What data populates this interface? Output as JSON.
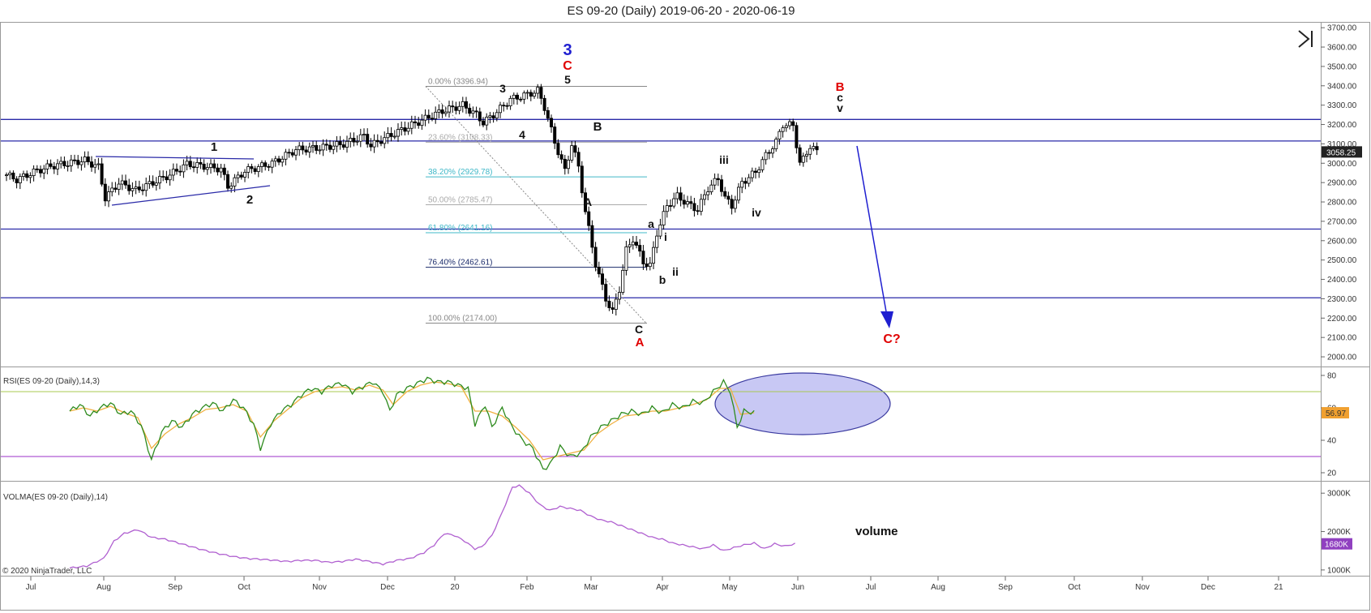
{
  "title": "ES 09-20 (Daily)  2019-06-20 - 2020-06-19",
  "copyright": "© 2020 NinjaTrader, LLC",
  "colors": {
    "up_candle": "#ffffff",
    "down_candle": "#000000",
    "hline": "#2a2aa8",
    "rsi_line": "#2e8b1e",
    "rsi_signal": "#f0b040",
    "rsi_overbought": "#a8c850",
    "rsi_oversold": "#9b30c8",
    "volma_line": "#b060d0",
    "ellipse_fill": "#c8c8f4",
    "ellipse_stroke": "#3a3aa0",
    "arrow": "#1f1fd0",
    "red_label": "#e00000",
    "blue_label": "#1f1fd0",
    "fib_gray": "#888888",
    "fib_cyan": "#40b8c8",
    "fib_navy": "#1a2a6a"
  },
  "icons": {
    "skip_to_end": "skip-to-end-icon"
  },
  "x_axis": {
    "labels": [
      "Jul",
      "Aug",
      "Sep",
      "Oct",
      "Nov",
      "Dec",
      "20",
      "Feb",
      "Mar",
      "Apr",
      "May",
      "Jun",
      "Jul",
      "Aug",
      "Sep",
      "Oct",
      "Nov",
      "Dec",
      "21"
    ]
  },
  "chart_data": [
    {
      "type": "candlestick",
      "title": "ES 09-20 (Daily)  2019-06-20 - 2020-06-19",
      "ylim": [
        1950,
        3730
      ],
      "y_ticks": [
        "2000.00",
        "2100.00",
        "2200.00",
        "2300.00",
        "2400.00",
        "2500.00",
        "2600.00",
        "2700.00",
        "2800.00",
        "2900.00",
        "3000.00",
        "3100.00",
        "3200.00",
        "3300.00",
        "3400.00",
        "3500.00",
        "3600.00",
        "3700.00"
      ],
      "last_price": "3058.25",
      "anchors": [
        [
          0,
          2940
        ],
        [
          3,
          2915
        ],
        [
          8,
          2955
        ],
        [
          13,
          2985
        ],
        [
          18,
          3000
        ],
        [
          23,
          3015
        ],
        [
          27,
          2980
        ],
        [
          29,
          2820
        ],
        [
          33,
          2900
        ],
        [
          38,
          2860
        ],
        [
          43,
          2900
        ],
        [
          48,
          2940
        ],
        [
          53,
          2995
        ],
        [
          58,
          2985
        ],
        [
          63,
          2970
        ],
        [
          65,
          2880
        ],
        [
          70,
          2960
        ],
        [
          78,
          3000
        ],
        [
          85,
          3070
        ],
        [
          92,
          3080
        ],
        [
          99,
          3100
        ],
        [
          105,
          3140
        ],
        [
          107,
          3090
        ],
        [
          110,
          3120
        ],
        [
          117,
          3180
        ],
        [
          123,
          3230
        ],
        [
          128,
          3270
        ],
        [
          134,
          3300
        ],
        [
          138,
          3250
        ],
        [
          140,
          3210
        ],
        [
          143,
          3250
        ],
        [
          148,
          3330
        ],
        [
          153,
          3355
        ],
        [
          156,
          3375
        ],
        [
          158,
          3290
        ],
        [
          161,
          3110
        ],
        [
          164,
          2960
        ],
        [
          166,
          3100
        ],
        [
          168,
          2980
        ],
        [
          170,
          2750
        ],
        [
          173,
          2480
        ],
        [
          176,
          2300
        ],
        [
          178,
          2230
        ],
        [
          180,
          2350
        ],
        [
          182,
          2550
        ],
        [
          184,
          2610
        ],
        [
          187,
          2490
        ],
        [
          189,
          2470
        ],
        [
          191,
          2640
        ],
        [
          194,
          2780
        ],
        [
          197,
          2830
        ],
        [
          200,
          2790
        ],
        [
          203,
          2760
        ],
        [
          206,
          2870
        ],
        [
          209,
          2920
        ],
        [
          211,
          2820
        ],
        [
          213,
          2780
        ],
        [
          216,
          2900
        ],
        [
          220,
          2955
        ],
        [
          223,
          3040
        ],
        [
          226,
          3110
        ],
        [
          228,
          3200
        ],
        [
          231,
          3195
        ],
        [
          233,
          3000
        ],
        [
          234,
          3020
        ],
        [
          236,
          3090
        ],
        [
          238,
          3058
        ]
      ],
      "horizontal_lines": [
        3226,
        3115,
        2660,
        2305
      ],
      "fibonacci": [
        {
          "label": "0.00% (3396.94)",
          "value": 3396.94,
          "color": "#888888"
        },
        {
          "label": "23.60% (3108.33)",
          "value": 3108.33,
          "color": "#aaaaaa"
        },
        {
          "label": "38.20% (2929.78)",
          "value": 2929.78,
          "color": "#40b8c8"
        },
        {
          "label": "50.00% (2785.47)",
          "value": 2785.47,
          "color": "#aaaaaa"
        },
        {
          "label": "61.80% (2641.16)",
          "value": 2641.16,
          "color": "#40b8c8"
        },
        {
          "label": "76.40% (2462.61)",
          "value": 2462.61,
          "color": "#1a2a6a"
        },
        {
          "label": "100.00% (2174.00)",
          "value": 2174.0,
          "color": "#888888"
        }
      ],
      "wave_labels": [
        {
          "text": "1",
          "color": "black"
        },
        {
          "text": "2",
          "color": "black"
        },
        {
          "text": "3",
          "color": "black"
        },
        {
          "text": "4",
          "color": "black"
        },
        {
          "text": "5",
          "color": "black"
        },
        {
          "text": "C",
          "color": "red"
        },
        {
          "text": "3",
          "color": "blue"
        },
        {
          "text": "B",
          "color": "black"
        },
        {
          "text": "A",
          "color": "black"
        },
        {
          "text": "C",
          "color": "black"
        },
        {
          "text": "A",
          "color": "red"
        },
        {
          "text": "a",
          "color": "black"
        },
        {
          "text": "b",
          "color": "black"
        },
        {
          "text": "i",
          "color": "black"
        },
        {
          "text": "ii",
          "color": "black"
        },
        {
          "text": "iii",
          "color": "black"
        },
        {
          "text": "iv",
          "color": "black"
        },
        {
          "text": "v",
          "color": "black"
        },
        {
          "text": "c",
          "color": "black"
        },
        {
          "text": "B",
          "color": "red"
        },
        {
          "text": "C?",
          "color": "red"
        }
      ]
    },
    {
      "type": "line",
      "title": "RSI(ES 09-20 (Daily),14,3)",
      "ylim": [
        15,
        85
      ],
      "y_ticks": [
        "20",
        "40",
        "60",
        "80"
      ],
      "overbought": 70,
      "oversold": 30,
      "last_value": "56.97",
      "anchors": [
        [
          0,
          58
        ],
        [
          3,
          62
        ],
        [
          6,
          55
        ],
        [
          9,
          60
        ],
        [
          12,
          63
        ],
        [
          15,
          56
        ],
        [
          18,
          58
        ],
        [
          21,
          49
        ],
        [
          24,
          28
        ],
        [
          27,
          45
        ],
        [
          30,
          52
        ],
        [
          33,
          48
        ],
        [
          36,
          56
        ],
        [
          39,
          60
        ],
        [
          42,
          63
        ],
        [
          45,
          58
        ],
        [
          48,
          65
        ],
        [
          51,
          60
        ],
        [
          54,
          50
        ],
        [
          56,
          35
        ],
        [
          59,
          50
        ],
        [
          62,
          58
        ],
        [
          65,
          62
        ],
        [
          68,
          68
        ],
        [
          71,
          72
        ],
        [
          74,
          70
        ],
        [
          77,
          74
        ],
        [
          80,
          75
        ],
        [
          83,
          70
        ],
        [
          86,
          73
        ],
        [
          89,
          76
        ],
        [
          92,
          70
        ],
        [
          94,
          58
        ],
        [
          96,
          68
        ],
        [
          99,
          72
        ],
        [
          102,
          75
        ],
        [
          105,
          78
        ],
        [
          108,
          76
        ],
        [
          111,
          76
        ],
        [
          114,
          74
        ],
        [
          117,
          72
        ],
        [
          119,
          50
        ],
        [
          122,
          62
        ],
        [
          124,
          48
        ],
        [
          127,
          60
        ],
        [
          130,
          48
        ],
        [
          133,
          40
        ],
        [
          136,
          35
        ],
        [
          139,
          22
        ],
        [
          141,
          25
        ],
        [
          144,
          36
        ],
        [
          147,
          30
        ],
        [
          150,
          32
        ],
        [
          153,
          42
        ],
        [
          156,
          48
        ],
        [
          159,
          52
        ],
        [
          162,
          56
        ],
        [
          165,
          58
        ],
        [
          168,
          56
        ],
        [
          171,
          60
        ],
        [
          174,
          57
        ],
        [
          177,
          62
        ],
        [
          180,
          60
        ],
        [
          183,
          64
        ],
        [
          186,
          63
        ],
        [
          189,
          70
        ],
        [
          192,
          76
        ],
        [
          194,
          70
        ],
        [
          196,
          48
        ],
        [
          198,
          58
        ],
        [
          201,
          57
        ]
      ],
      "signal_anchors": [
        [
          0,
          58
        ],
        [
          4,
          60
        ],
        [
          8,
          58
        ],
        [
          12,
          61
        ],
        [
          16,
          57
        ],
        [
          20,
          54
        ],
        [
          24,
          35
        ],
        [
          28,
          44
        ],
        [
          32,
          50
        ],
        [
          36,
          54
        ],
        [
          40,
          59
        ],
        [
          44,
          60
        ],
        [
          48,
          62
        ],
        [
          52,
          58
        ],
        [
          56,
          42
        ],
        [
          60,
          52
        ],
        [
          64,
          59
        ],
        [
          68,
          66
        ],
        [
          72,
          70
        ],
        [
          76,
          72
        ],
        [
          80,
          73
        ],
        [
          84,
          71
        ],
        [
          88,
          74
        ],
        [
          92,
          71
        ],
        [
          95,
          62
        ],
        [
          99,
          70
        ],
        [
          103,
          74
        ],
        [
          107,
          76
        ],
        [
          111,
          75
        ],
        [
          115,
          73
        ],
        [
          119,
          58
        ],
        [
          123,
          58
        ],
        [
          127,
          55
        ],
        [
          131,
          48
        ],
        [
          135,
          40
        ],
        [
          139,
          28
        ],
        [
          143,
          30
        ],
        [
          147,
          32
        ],
        [
          151,
          34
        ],
        [
          155,
          44
        ],
        [
          159,
          50
        ],
        [
          163,
          55
        ],
        [
          167,
          56
        ],
        [
          171,
          58
        ],
        [
          175,
          58
        ],
        [
          179,
          60
        ],
        [
          183,
          62
        ],
        [
          187,
          65
        ],
        [
          191,
          72
        ],
        [
          194,
          72
        ],
        [
          197,
          56
        ],
        [
          201,
          57
        ]
      ]
    },
    {
      "type": "line",
      "title": "VOLMA(ES 09-20 (Daily),14)",
      "ylim": [
        850,
        3300
      ],
      "y_ticks": [
        "1000K",
        "2000K",
        "3000K"
      ],
      "last_value": "1680K",
      "annotation": "volume",
      "anchors": [
        [
          0,
          1050
        ],
        [
          5,
          1100
        ],
        [
          10,
          1300
        ],
        [
          13,
          1750
        ],
        [
          16,
          1950
        ],
        [
          20,
          2050
        ],
        [
          24,
          1850
        ],
        [
          28,
          1800
        ],
        [
          32,
          1700
        ],
        [
          36,
          1600
        ],
        [
          40,
          1500
        ],
        [
          44,
          1420
        ],
        [
          48,
          1350
        ],
        [
          52,
          1300
        ],
        [
          56,
          1280
        ],
        [
          60,
          1250
        ],
        [
          64,
          1220
        ],
        [
          68,
          1250
        ],
        [
          72,
          1250
        ],
        [
          76,
          1200
        ],
        [
          80,
          1220
        ],
        [
          84,
          1280
        ],
        [
          88,
          1220
        ],
        [
          92,
          1150
        ],
        [
          96,
          1250
        ],
        [
          100,
          1300
        ],
        [
          104,
          1450
        ],
        [
          107,
          1650
        ],
        [
          110,
          1950
        ],
        [
          113,
          1900
        ],
        [
          116,
          1750
        ],
        [
          119,
          1550
        ],
        [
          121,
          1600
        ],
        [
          124,
          1900
        ],
        [
          127,
          2500
        ],
        [
          130,
          3150
        ],
        [
          132,
          3200
        ],
        [
          135,
          3000
        ],
        [
          138,
          2700
        ],
        [
          141,
          2550
        ],
        [
          144,
          2650
        ],
        [
          147,
          2600
        ],
        [
          150,
          2550
        ],
        [
          153,
          2400
        ],
        [
          156,
          2300
        ],
        [
          159,
          2250
        ],
        [
          162,
          2150
        ],
        [
          165,
          2050
        ],
        [
          168,
          1950
        ],
        [
          171,
          1850
        ],
        [
          174,
          1800
        ],
        [
          177,
          1700
        ],
        [
          180,
          1650
        ],
        [
          183,
          1600
        ],
        [
          186,
          1550
        ],
        [
          189,
          1650
        ],
        [
          192,
          1500
        ],
        [
          195,
          1580
        ],
        [
          198,
          1650
        ],
        [
          201,
          1700
        ],
        [
          204,
          1550
        ],
        [
          207,
          1680
        ],
        [
          210,
          1620
        ],
        [
          213,
          1680
        ]
      ]
    }
  ]
}
